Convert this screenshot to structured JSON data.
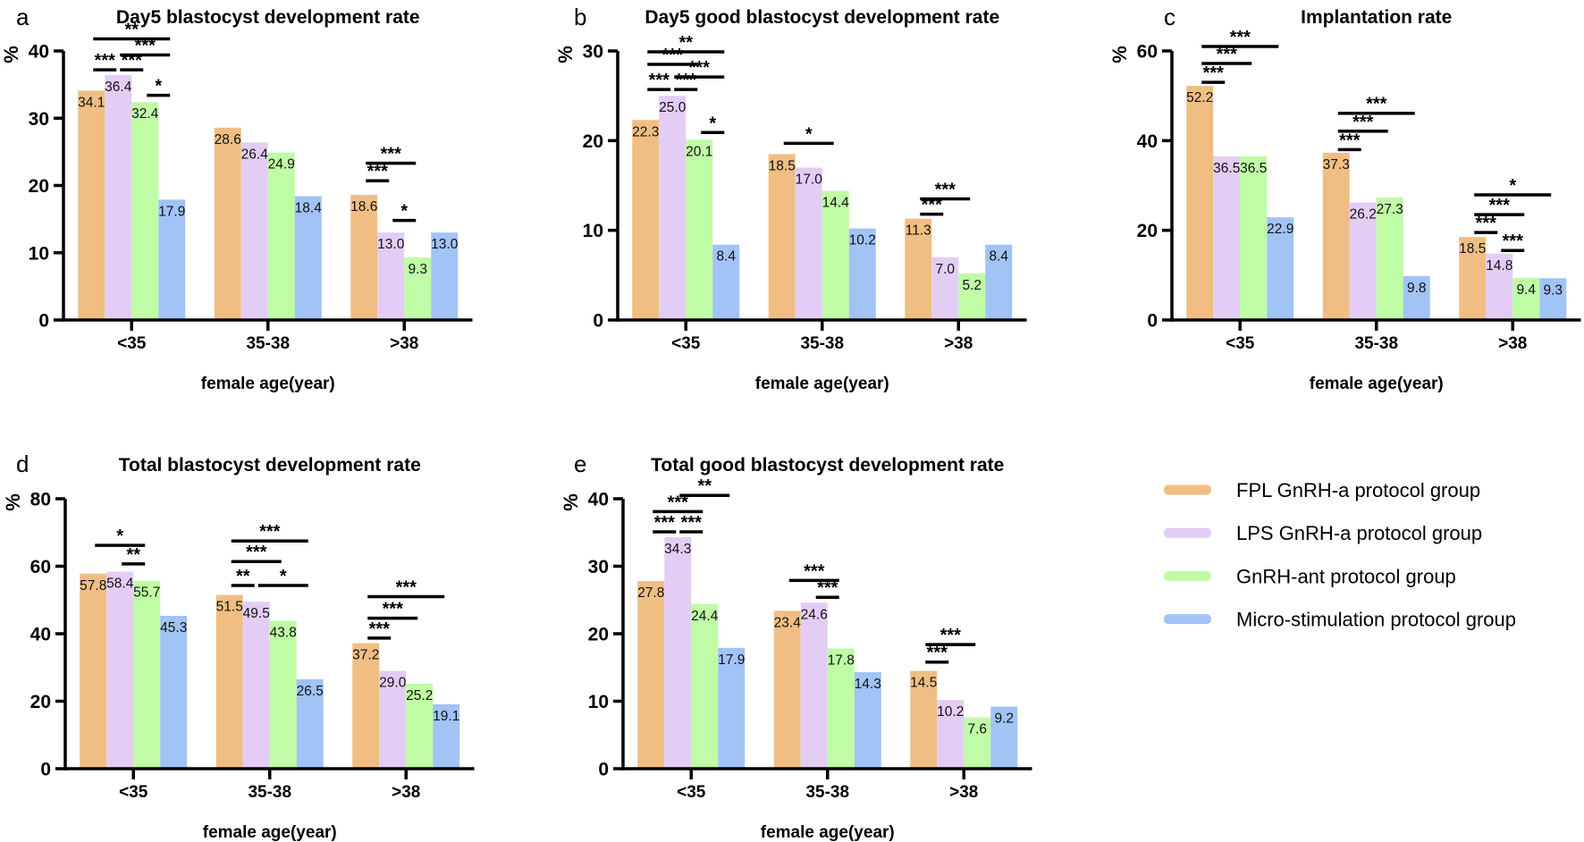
{
  "figure": {
    "background": "#ffffff",
    "series_colors": [
      "#F0BE83",
      "#E4CDF4",
      "#BFFCA5",
      "#A1C3F5"
    ],
    "categories": [
      "<35",
      "35-38",
      ">38"
    ],
    "xlabel": "female age(year)",
    "ylabel": "%"
  },
  "legend": {
    "position": "bottom-right",
    "items": [
      {
        "label": "FPL GnRH-a protocol group",
        "color": "#F0BE83"
      },
      {
        "label": "LPS GnRH-a protocol group",
        "color": "#E4CDF4"
      },
      {
        "label": "GnRH-ant protocol group",
        "color": "#BFFCA5"
      },
      {
        "label": "Micro-stimulation protocol group",
        "color": "#A1C3F5"
      }
    ]
  },
  "chart_data": [
    {
      "type": "bar",
      "panel": "a",
      "title": "Day5 blastocyst development rate",
      "xlabel": "female age(year)",
      "ylabel": "%",
      "categories": [
        "<35",
        "35-38",
        ">38"
      ],
      "ylim": [
        0,
        40
      ],
      "yticks": [
        0,
        10,
        20,
        30,
        40
      ],
      "grid": false,
      "series": [
        {
          "name": "FPL GnRH-a protocol group",
          "values": [
            34.1,
            28.6,
            18.6
          ]
        },
        {
          "name": "LPS GnRH-a protocol group",
          "values": [
            36.4,
            26.4,
            13.0
          ]
        },
        {
          "name": "GnRH-ant protocol group",
          "values": [
            32.4,
            24.9,
            9.3
          ]
        },
        {
          "name": "Micro-stimulation protocol group",
          "values": [
            17.9,
            18.4,
            13.0
          ]
        }
      ],
      "significance": [
        {
          "group_index": 0,
          "from_bar": 0,
          "to_bar": 3,
          "label": "**",
          "y": 41.8
        },
        {
          "group_index": 0,
          "from_bar": 1,
          "to_bar": 3,
          "label": "***",
          "y": 39.4
        },
        {
          "group_index": 0,
          "from_bar": 0,
          "to_bar": 1,
          "label": "***",
          "y": 37.2
        },
        {
          "group_index": 0,
          "from_bar": 1,
          "to_bar": 2,
          "label": "***",
          "y": 37.2
        },
        {
          "group_index": 0,
          "from_bar": 2,
          "to_bar": 3,
          "label": "*",
          "y": 33.4
        },
        {
          "group_index": 2,
          "from_bar": 0,
          "to_bar": 2,
          "label": "***",
          "y": 23.3
        },
        {
          "group_index": 2,
          "from_bar": 0,
          "to_bar": 1,
          "label": "***",
          "y": 20.7
        },
        {
          "group_index": 2,
          "from_bar": 1,
          "to_bar": 2,
          "label": "*",
          "y": 14.8
        }
      ]
    },
    {
      "type": "bar",
      "panel": "b",
      "title": "Day5 good blastocyst development rate",
      "xlabel": "female age(year)",
      "ylabel": "%",
      "categories": [
        "<35",
        "35-38",
        ">38"
      ],
      "ylim": [
        0,
        30
      ],
      "yticks": [
        0,
        10,
        20,
        30
      ],
      "grid": false,
      "series": [
        {
          "name": "FPL GnRH-a protocol group",
          "values": [
            22.3,
            18.5,
            11.3
          ]
        },
        {
          "name": "LPS GnRH-a protocol group",
          "values": [
            25.0,
            17.0,
            7.0
          ]
        },
        {
          "name": "GnRH-ant protocol group",
          "values": [
            20.1,
            14.4,
            5.2
          ]
        },
        {
          "name": "Micro-stimulation protocol group",
          "values": [
            8.4,
            10.2,
            8.4
          ]
        }
      ],
      "significance": [
        {
          "group_index": 0,
          "from_bar": 0,
          "to_bar": 3,
          "label": "**",
          "y": 29.9
        },
        {
          "group_index": 0,
          "from_bar": 0,
          "to_bar": 2,
          "label": "***",
          "y": 28.5
        },
        {
          "group_index": 0,
          "from_bar": 1,
          "to_bar": 3,
          "label": "***",
          "y": 27.1
        },
        {
          "group_index": 0,
          "from_bar": 0,
          "to_bar": 1,
          "label": "***",
          "y": 25.7
        },
        {
          "group_index": 0,
          "from_bar": 1,
          "to_bar": 2,
          "label": "***",
          "y": 25.7
        },
        {
          "group_index": 0,
          "from_bar": 2,
          "to_bar": 3,
          "label": "*",
          "y": 20.9
        },
        {
          "group_index": 1,
          "from_bar": 0,
          "to_bar": 2,
          "label": "*",
          "y": 19.7
        },
        {
          "group_index": 2,
          "from_bar": 0,
          "to_bar": 2,
          "label": "***",
          "y": 13.5
        },
        {
          "group_index": 2,
          "from_bar": 0,
          "to_bar": 1,
          "label": "***",
          "y": 11.8
        }
      ]
    },
    {
      "type": "bar",
      "panel": "c",
      "title": "Implantation rate",
      "xlabel": "female age(year)",
      "ylabel": "%",
      "categories": [
        "<35",
        "35-38",
        ">38"
      ],
      "ylim": [
        0,
        60
      ],
      "yticks": [
        0,
        20,
        40,
        60
      ],
      "grid": false,
      "series": [
        {
          "name": "FPL GnRH-a protocol group",
          "values": [
            52.2,
            37.3,
            18.5
          ]
        },
        {
          "name": "LPS GnRH-a protocol group",
          "values": [
            36.5,
            26.2,
            14.8
          ]
        },
        {
          "name": "GnRH-ant protocol group",
          "values": [
            36.5,
            27.3,
            9.4
          ]
        },
        {
          "name": "Micro-stimulation protocol group",
          "values": [
            22.9,
            9.8,
            9.3
          ]
        }
      ],
      "significance": [
        {
          "group_index": 0,
          "from_bar": 0,
          "to_bar": 3,
          "label": "***",
          "y": 61.0
        },
        {
          "group_index": 0,
          "from_bar": 0,
          "to_bar": 2,
          "label": "***",
          "y": 57.2
        },
        {
          "group_index": 0,
          "from_bar": 0,
          "to_bar": 1,
          "label": "***",
          "y": 53.0
        },
        {
          "group_index": 1,
          "from_bar": 0,
          "to_bar": 3,
          "label": "***",
          "y": 46.1
        },
        {
          "group_index": 1,
          "from_bar": 0,
          "to_bar": 2,
          "label": "***",
          "y": 42.1
        },
        {
          "group_index": 1,
          "from_bar": 0,
          "to_bar": 1,
          "label": "***",
          "y": 38.0
        },
        {
          "group_index": 2,
          "from_bar": 0,
          "to_bar": 3,
          "label": "*",
          "y": 27.9
        },
        {
          "group_index": 2,
          "from_bar": 0,
          "to_bar": 2,
          "label": "***",
          "y": 23.5
        },
        {
          "group_index": 2,
          "from_bar": 0,
          "to_bar": 1,
          "label": "***",
          "y": 19.5
        },
        {
          "group_index": 2,
          "from_bar": 1,
          "to_bar": 2,
          "label": "***",
          "y": 15.5
        }
      ]
    },
    {
      "type": "bar",
      "panel": "d",
      "title": "Total blastocyst development rate",
      "xlabel": "female age(year)",
      "ylabel": "%",
      "categories": [
        "<35",
        "35-38",
        ">38"
      ],
      "ylim": [
        0,
        80
      ],
      "yticks": [
        0,
        20,
        40,
        60,
        80
      ],
      "grid": false,
      "series": [
        {
          "name": "FPL GnRH-a protocol group",
          "values": [
            57.8,
            51.5,
            37.2
          ]
        },
        {
          "name": "LPS GnRH-a protocol group",
          "values": [
            58.4,
            49.5,
            29.0
          ]
        },
        {
          "name": "GnRH-ant protocol group",
          "values": [
            55.7,
            43.8,
            25.2
          ]
        },
        {
          "name": "Micro-stimulation protocol group",
          "values": [
            45.3,
            26.5,
            19.1
          ]
        }
      ],
      "significance": [
        {
          "group_index": 0,
          "from_bar": 0,
          "to_bar": 2,
          "label": "*",
          "y": 66.2
        },
        {
          "group_index": 0,
          "from_bar": 1,
          "to_bar": 2,
          "label": "**",
          "y": 60.7
        },
        {
          "group_index": 1,
          "from_bar": 0,
          "to_bar": 3,
          "label": "***",
          "y": 67.5
        },
        {
          "group_index": 1,
          "from_bar": 0,
          "to_bar": 2,
          "label": "***",
          "y": 61.4
        },
        {
          "group_index": 1,
          "from_bar": 0,
          "to_bar": 1,
          "label": "**",
          "y": 54.3
        },
        {
          "group_index": 1,
          "from_bar": 1,
          "to_bar": 3,
          "label": "*",
          "y": 54.3
        },
        {
          "group_index": 2,
          "from_bar": 0,
          "to_bar": 3,
          "label": "***",
          "y": 51.0
        },
        {
          "group_index": 2,
          "from_bar": 0,
          "to_bar": 2,
          "label": "***",
          "y": 44.6
        },
        {
          "group_index": 2,
          "from_bar": 0,
          "to_bar": 1,
          "label": "***",
          "y": 38.7
        }
      ]
    },
    {
      "type": "bar",
      "panel": "e",
      "title": "Total good blastocyst development rate",
      "xlabel": "female age(year)",
      "ylabel": "%",
      "categories": [
        "<35",
        "35-38",
        ">38"
      ],
      "ylim": [
        0,
        40
      ],
      "yticks": [
        0,
        10,
        20,
        30,
        40
      ],
      "grid": false,
      "series": [
        {
          "name": "FPL GnRH-a protocol group",
          "values": [
            27.8,
            23.4,
            14.5
          ]
        },
        {
          "name": "LPS GnRH-a protocol group",
          "values": [
            34.3,
            24.6,
            10.2
          ]
        },
        {
          "name": "GnRH-ant protocol group",
          "values": [
            24.4,
            17.8,
            7.6
          ]
        },
        {
          "name": "Micro-stimulation protocol group",
          "values": [
            17.9,
            14.3,
            9.2
          ]
        }
      ],
      "significance": [
        {
          "group_index": 0,
          "from_bar": 1,
          "to_bar": 3,
          "label": "**",
          "y": 40.5
        },
        {
          "group_index": 0,
          "from_bar": 0,
          "to_bar": 2,
          "label": "***",
          "y": 38.1
        },
        {
          "group_index": 0,
          "from_bar": 0,
          "to_bar": 1,
          "label": "***",
          "y": 35.1
        },
        {
          "group_index": 0,
          "from_bar": 1,
          "to_bar": 2,
          "label": "***",
          "y": 35.1
        },
        {
          "group_index": 1,
          "from_bar": 0,
          "to_bar": 2,
          "label": "***",
          "y": 27.9
        },
        {
          "group_index": 1,
          "from_bar": 1,
          "to_bar": 2,
          "label": "***",
          "y": 25.4
        },
        {
          "group_index": 2,
          "from_bar": 0,
          "to_bar": 2,
          "label": "***",
          "y": 18.4
        },
        {
          "group_index": 2,
          "from_bar": 0,
          "to_bar": 1,
          "label": "***",
          "y": 15.8
        }
      ]
    }
  ]
}
